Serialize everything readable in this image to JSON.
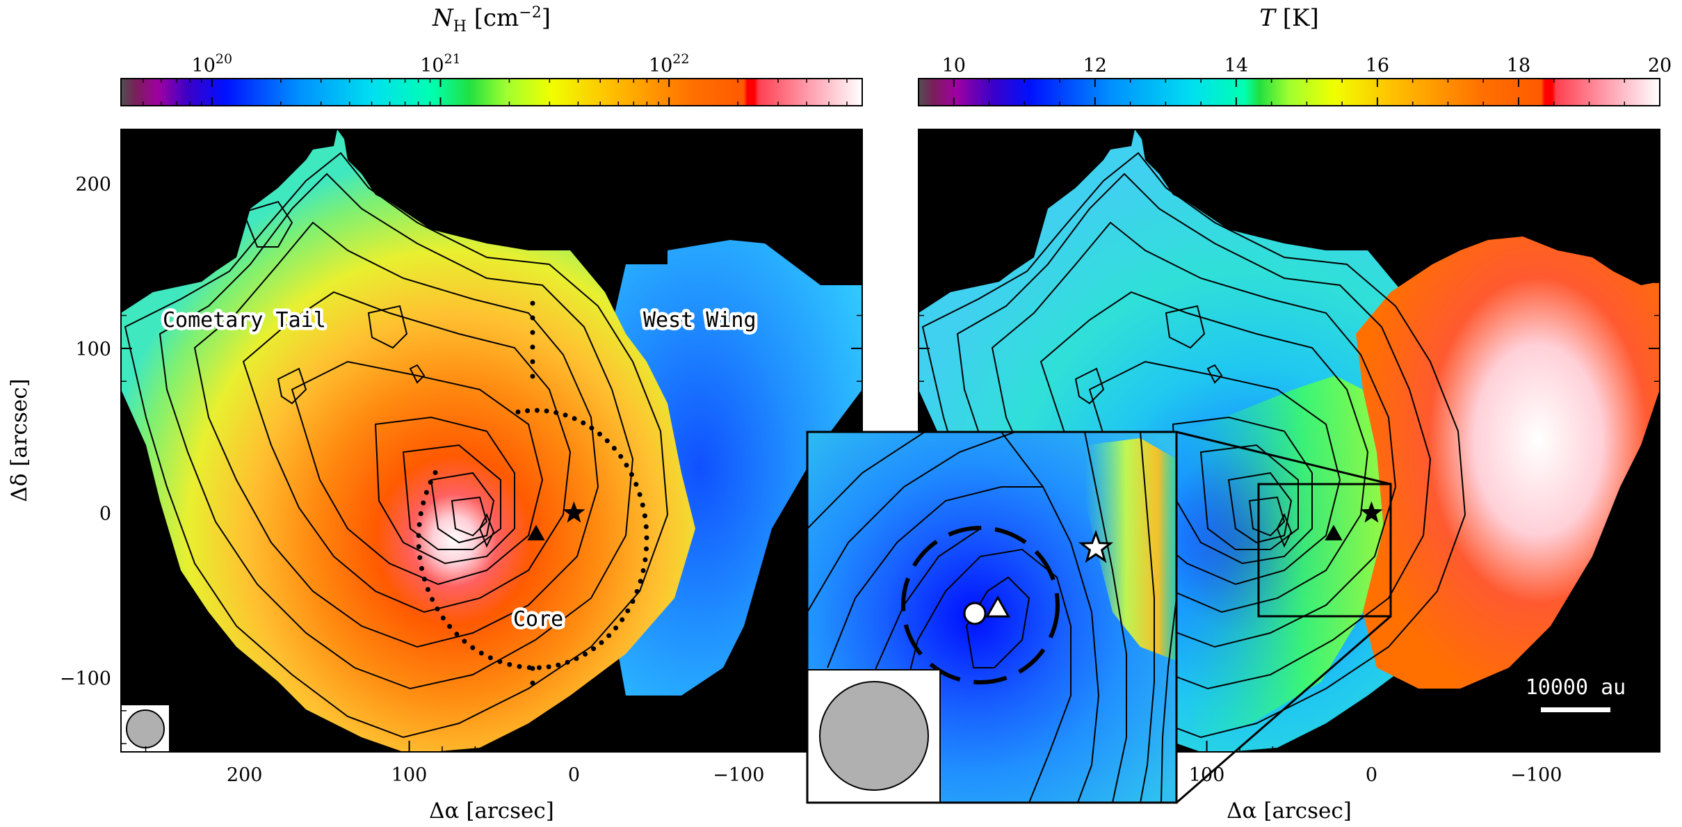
{
  "panels": [
    {
      "id": "nh",
      "colorbar": {
        "title_main": "N",
        "title_sub": "H",
        "title_unit": " [cm",
        "title_exp": "−2",
        "title_close": "]",
        "scale": "log",
        "ticks": [
          {
            "value": 1e+20,
            "base": "10",
            "exp": "20"
          },
          {
            "value": 1e+21,
            "base": "10",
            "exp": "21"
          },
          {
            "value": 1e+22,
            "base": "10",
            "exp": "22"
          }
        ],
        "range": [
          4e+19,
          7e+22
        ]
      },
      "x_axis": {
        "label": "Δα [arcsec]",
        "ticks": [
          200,
          100,
          0,
          -100
        ],
        "range": [
          275,
          -175
        ]
      },
      "y_axis": {
        "label": "Δδ [arcsec]",
        "ticks": [
          200,
          100,
          0,
          -100
        ],
        "range": [
          -145,
          233
        ]
      },
      "labels": {
        "tail": "Cometary Tail",
        "wing": "West Wing",
        "core": "Core"
      },
      "colors": {
        "hot": "#ff6a00",
        "peak": "#ffffff"
      }
    },
    {
      "id": "t",
      "colorbar": {
        "title_main": "T",
        "title_unit": " [K]",
        "scale": "linear",
        "ticks": [
          10,
          12,
          14,
          16,
          18,
          20
        ],
        "range": [
          9.5,
          20
        ]
      },
      "x_axis": {
        "label": "Δα [arcsec]",
        "ticks": [
          100,
          0,
          -100
        ],
        "range": [
          275,
          -175
        ]
      },
      "y_axis": {
        "ticks": [
          200,
          100,
          0,
          -100
        ],
        "range": [
          -145,
          233
        ]
      },
      "scale_bar": "10000 au",
      "colors": {
        "cold": "#1a33ff",
        "warm": "#ff5a00"
      }
    }
  ],
  "chart_data": [
    {
      "type": "heatmap",
      "quantity": "N_H",
      "units": "cm^-2",
      "scale": "log",
      "xlabel": "Δα [arcsec]",
      "ylabel": "Δδ [arcsec]",
      "xlim": [
        275,
        -175
      ],
      "ylim": [
        -145,
        233
      ],
      "colorbar_range": [
        4e+19,
        7e+22
      ],
      "markers": [
        {
          "shape": "star",
          "x": 0,
          "y": 0
        },
        {
          "shape": "triangle",
          "x": 23,
          "y": -13
        }
      ],
      "annotations": [
        "Cometary Tail",
        "West Wing",
        "Core"
      ]
    },
    {
      "type": "heatmap",
      "quantity": "T",
      "units": "K",
      "scale": "linear",
      "xlabel": "Δα [arcsec]",
      "xlim": [
        275,
        -175
      ],
      "ylim": [
        -145,
        233
      ],
      "colorbar_range": [
        9.5,
        20
      ],
      "markers": [
        {
          "shape": "star",
          "x": 0,
          "y": 0
        },
        {
          "shape": "triangle",
          "x": 23,
          "y": -13
        }
      ],
      "scale_bar": "10000 au"
    }
  ]
}
